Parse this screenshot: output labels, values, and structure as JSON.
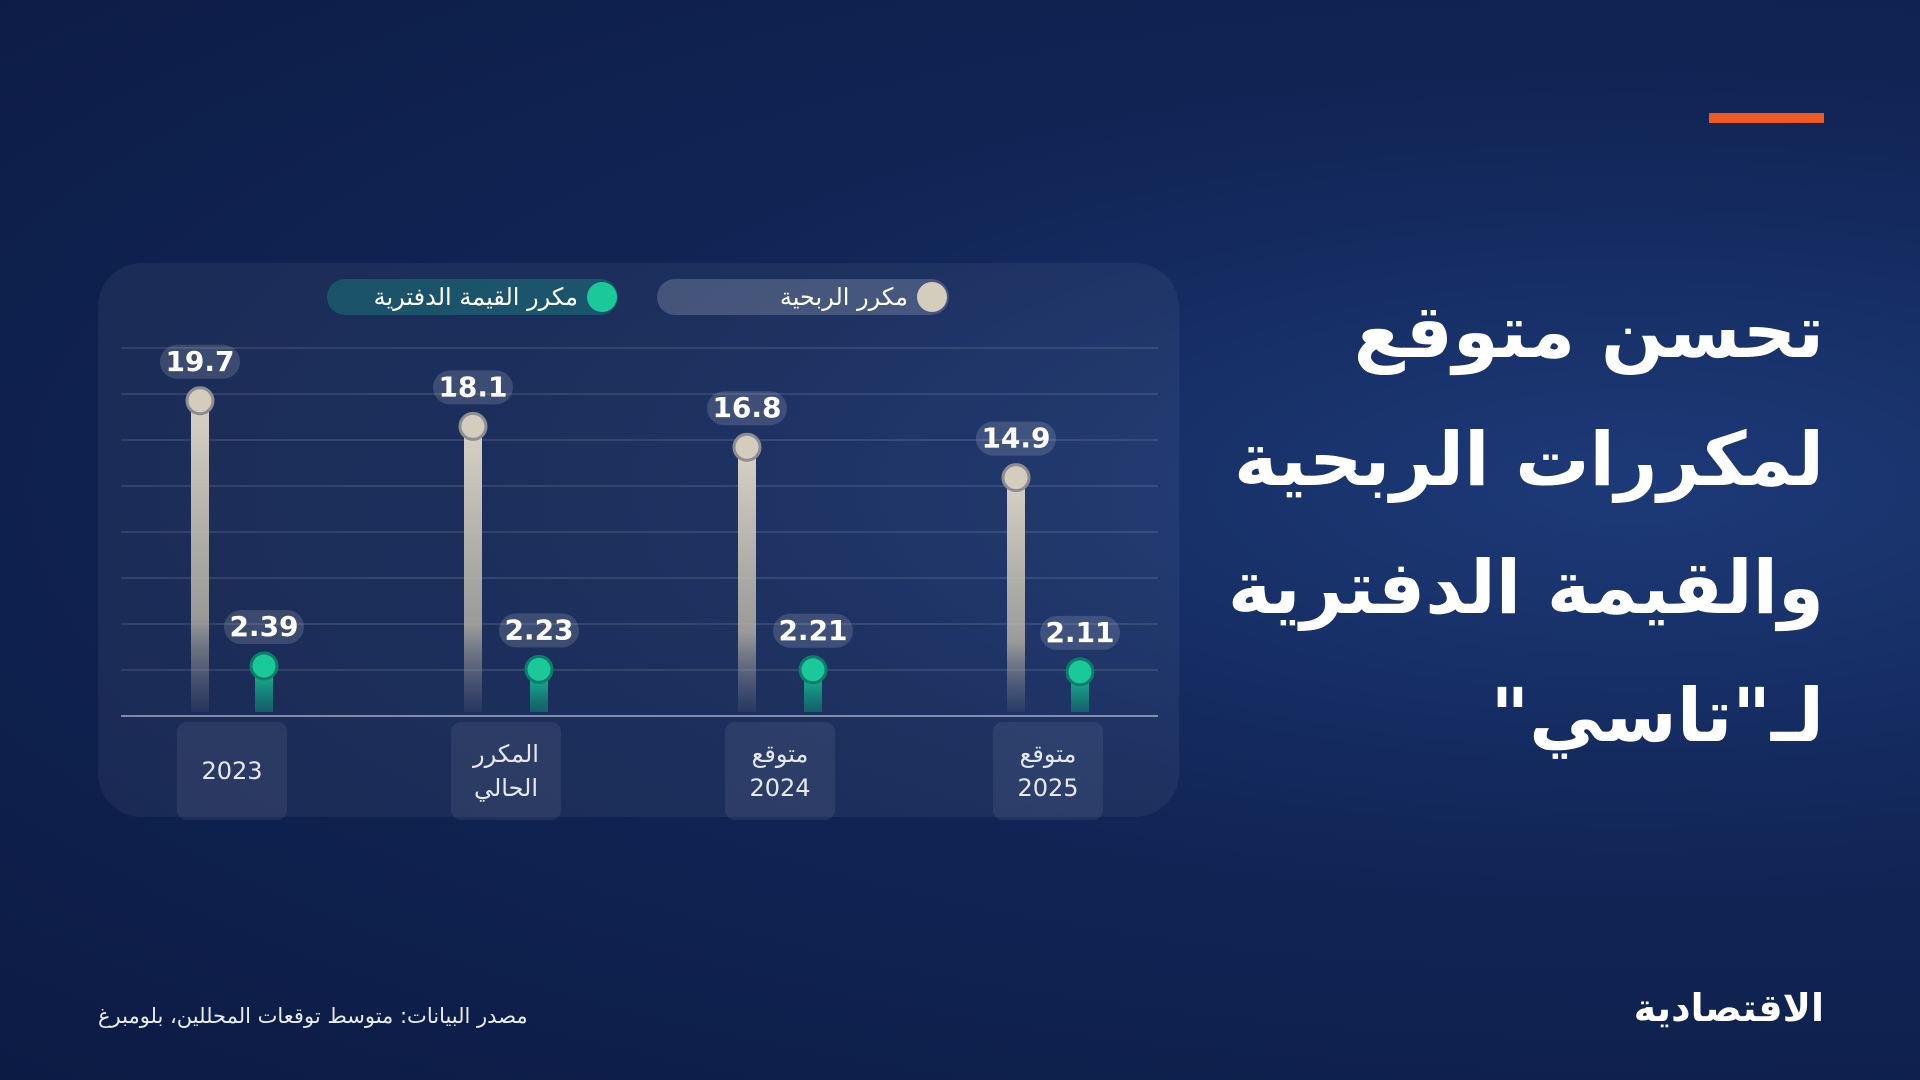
{
  "title": "تحسن متوقع لمكررات الربحية والقيمة الدفترية لـ\"تاسي\"",
  "source": "مصدر البيانات: متوسط توقعات المحللين، بلومبرغ",
  "logo": "الاقتصادية",
  "chart_data": {
    "type": "lollipop",
    "categories": [
      "2023",
      "المكرر الحالي",
      "متوقع 2024",
      "متوقع 2025"
    ],
    "series": [
      {
        "name": "مكرر الربحية",
        "color": "#d4cdbd",
        "values": [
          19.7,
          18.1,
          16.8,
          14.9
        ]
      },
      {
        "name": "مكرر القيمة الدفترية",
        "color": "#19c99a",
        "values": [
          2.39,
          2.23,
          2.21,
          2.11
        ],
        "axis": "y2"
      }
    ],
    "ylim": [
      0,
      23
    ],
    "y2lim": [
      0,
      17.6
    ],
    "grid": true,
    "legend": "top"
  }
}
